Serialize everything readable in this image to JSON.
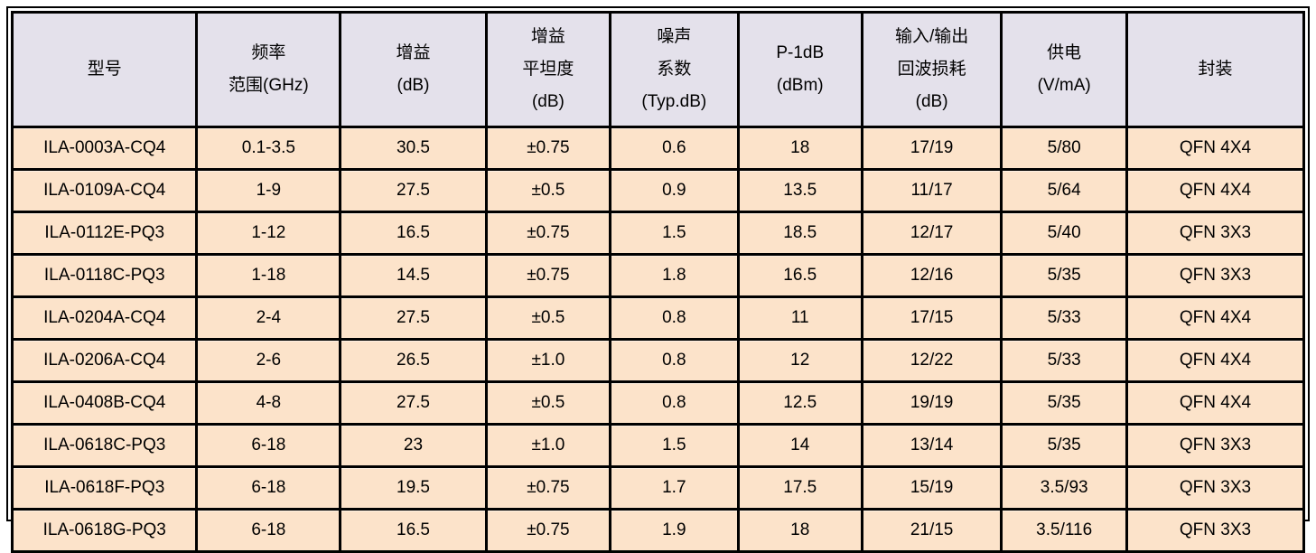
{
  "table": {
    "columns": [
      {
        "key": "model",
        "lines": [
          "型号"
        ]
      },
      {
        "key": "freq-range",
        "lines": [
          "频率",
          "范围(GHz)"
        ]
      },
      {
        "key": "gain",
        "lines": [
          "增益",
          "(dB)"
        ]
      },
      {
        "key": "gain-flatness",
        "lines": [
          "增益",
          "平坦度",
          "(dB)"
        ]
      },
      {
        "key": "noise-figure",
        "lines": [
          "噪声",
          "系数",
          "(Typ.dB)"
        ]
      },
      {
        "key": "p1db",
        "lines": [
          "P-1dB",
          "(dBm)"
        ]
      },
      {
        "key": "return-loss",
        "lines": [
          "输入/输出",
          "回波损耗",
          "(dB)"
        ]
      },
      {
        "key": "supply",
        "lines": [
          "供电",
          "(V/mA)"
        ]
      },
      {
        "key": "package",
        "lines": [
          "封装"
        ]
      }
    ],
    "rows": [
      [
        "ILA-0003A-CQ4",
        "0.1-3.5",
        "30.5",
        "±0.75",
        "0.6",
        "18",
        "17/19",
        "5/80",
        "QFN 4X4"
      ],
      [
        "ILA-0109A-CQ4",
        "1-9",
        "27.5",
        "±0.5",
        "0.9",
        "13.5",
        "11/17",
        "5/64",
        "QFN 4X4"
      ],
      [
        "ILA-0112E-PQ3",
        "1-12",
        "16.5",
        "±0.75",
        "1.5",
        "18.5",
        "12/17",
        "5/40",
        "QFN 3X3"
      ],
      [
        "ILA-0118C-PQ3",
        "1-18",
        "14.5",
        "±0.75",
        "1.8",
        "16.5",
        "12/16",
        "5/35",
        "QFN 3X3"
      ],
      [
        "ILA-0204A-CQ4",
        "2-4",
        "27.5",
        "±0.5",
        "0.8",
        "11",
        "17/15",
        "5/33",
        "QFN 4X4"
      ],
      [
        "ILA-0206A-CQ4",
        "2-6",
        "26.5",
        "±1.0",
        "0.8",
        "12",
        "12/22",
        "5/33",
        "QFN 4X4"
      ],
      [
        "ILA-0408B-CQ4",
        "4-8",
        "27.5",
        "±0.5",
        "0.8",
        "12.5",
        "19/19",
        "5/35",
        "QFN 4X4"
      ],
      [
        "ILA-0618C-PQ3",
        "6-18",
        "23",
        "±1.0",
        "1.5",
        "14",
        "13/14",
        "5/35",
        "QFN 3X3"
      ],
      [
        "ILA-0618F-PQ3",
        "6-18",
        "19.5",
        "±0.75",
        "1.7",
        "17.5",
        "15/19",
        "3.5/93",
        "QFN 3X3"
      ],
      [
        "ILA-0618G-PQ3",
        "6-18",
        "16.5",
        "±0.75",
        "1.9",
        "18",
        "21/15",
        "3.5/116",
        "QFN 3X3"
      ]
    ],
    "colors": {
      "header_bg": "#E4E1EB",
      "row_bg": "#FCE3CA",
      "grid": "#000000",
      "text": "#000000"
    }
  }
}
